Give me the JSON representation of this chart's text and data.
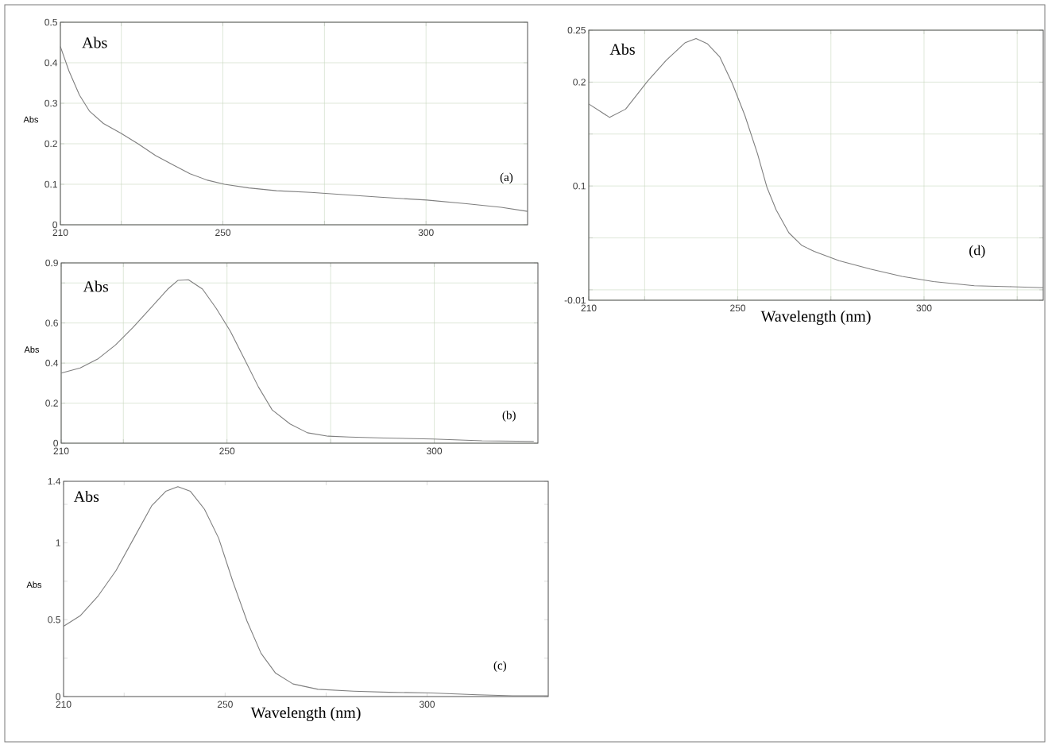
{
  "chart_data": [
    {
      "type": "line",
      "ylabel": "Abs",
      "annotations": [
        "Abs",
        "(a)"
      ],
      "xlim": [
        210,
        325
      ],
      "ylim": [
        0,
        0.5
      ],
      "grid": true,
      "xticks": [
        210,
        {
          "value": 225,
          "label": null
        },
        250,
        {
          "value": 275,
          "label": null
        },
        300
      ],
      "yticks": [
        0,
        0.1,
        0.2,
        0.3,
        0.4,
        0.5
      ],
      "series": [
        {
          "color": "#7f7f7f",
          "x": [
            210,
            212.1,
            214.7,
            217.2,
            220.6,
            224.9,
            229.1,
            233.4,
            237.7,
            241.9,
            246.2,
            250.4,
            256.4,
            263.2,
            271.7,
            280.2,
            288.7,
            300.2,
            310,
            318.5,
            325
          ],
          "values": [
            0.44,
            0.38,
            0.32,
            0.28,
            0.25,
            0.226,
            0.2,
            0.171,
            0.148,
            0.126,
            0.11,
            0.1,
            0.091,
            0.084,
            0.08,
            0.074,
            0.068,
            0.061,
            0.052,
            0.043,
            0.033
          ]
        }
      ]
    },
    {
      "type": "line",
      "ylabel": "Abs",
      "annotations": [
        "Abs",
        "(b)"
      ],
      "xlim": [
        210,
        325
      ],
      "ylim": [
        0,
        0.9
      ],
      "grid": true,
      "xticks": [
        210,
        {
          "value": 225,
          "label": null
        },
        250,
        {
          "value": 275,
          "label": null
        },
        300
      ],
      "yticks": [
        0,
        0.2,
        0.4,
        0.6,
        {
          "value": 0.8,
          "label": null
        },
        0.9
      ],
      "series": [
        {
          "color": "#7f7f7f",
          "x": [
            210,
            214.6,
            218.8,
            223.1,
            227.3,
            231.5,
            235.7,
            238.2,
            240.7,
            244.1,
            247.4,
            250.8,
            254.2,
            257.6,
            260.9,
            265.2,
            269.4,
            274.4,
            279.5,
            287.9,
            299.7,
            311.5,
            324
          ],
          "values": [
            0.35,
            0.376,
            0.42,
            0.49,
            0.577,
            0.673,
            0.769,
            0.813,
            0.816,
            0.769,
            0.673,
            0.559,
            0.42,
            0.28,
            0.166,
            0.096,
            0.052,
            0.035,
            0.031,
            0.026,
            0.021,
            0.012,
            0.009
          ]
        }
      ]
    },
    {
      "type": "line",
      "ylabel": "Abs",
      "xlabel": "Wavelength (nm)",
      "annotations": [
        "Abs",
        "(c)"
      ],
      "xlim": [
        210,
        330
      ],
      "ylim": [
        0,
        1.4
      ],
      "xticks": [
        210,
        {
          "value": 225,
          "label": null
        },
        250,
        {
          "value": 275,
          "label": null
        },
        300
      ],
      "yticks": [
        0,
        {
          "value": 0.25,
          "label": null
        },
        0.5,
        {
          "value": 0.75,
          "label": null
        },
        1,
        {
          "value": 1.25,
          "label": null
        },
        1.4
      ],
      "series": [
        {
          "color": "#7f7f7f",
          "x": [
            210,
            214.2,
            218.6,
            223,
            227.4,
            231.8,
            235.3,
            238.3,
            241.4,
            244.9,
            248.4,
            251.9,
            255.4,
            258.9,
            262.5,
            266.8,
            273,
            281.8,
            290.5,
            301,
            312.5,
            321.2,
            330
          ],
          "values": [
            0.457,
            0.527,
            0.656,
            0.82,
            1.03,
            1.24,
            1.335,
            1.365,
            1.335,
            1.218,
            1.03,
            0.749,
            0.492,
            0.281,
            0.152,
            0.082,
            0.047,
            0.035,
            0.028,
            0.023,
            0.012,
            0.005,
            0.005
          ]
        }
      ]
    },
    {
      "type": "line",
      "xlabel": "Wavelength (nm)",
      "annotations": [
        "Abs",
        "(d)"
      ],
      "xlim": [
        210,
        332
      ],
      "ylim": [
        -0.01,
        0.25
      ],
      "grid": true,
      "xticks": [
        210,
        {
          "value": 225,
          "label": null
        },
        250,
        {
          "value": 275,
          "label": null
        },
        300,
        {
          "value": 325,
          "label": null
        }
      ],
      "yticks": [
        -0.01,
        {
          "value": 0,
          "label": null
        },
        {
          "value": 0.05,
          "label": null
        },
        0.1,
        {
          "value": 0.15,
          "label": null
        },
        0.2,
        0.25
      ],
      "series": [
        {
          "color": "#7f7f7f",
          "x": [
            210,
            215.6,
            219.9,
            225.8,
            230.8,
            235.9,
            238.8,
            241.8,
            245.2,
            248.5,
            251.9,
            255.3,
            257.8,
            260.3,
            263.7,
            267.1,
            270.5,
            277.2,
            285.6,
            294.1,
            302.5,
            313.5,
            323.6,
            332
          ],
          "values": [
            0.179,
            0.166,
            0.174,
            0.201,
            0.221,
            0.238,
            0.242,
            0.237,
            0.224,
            0.199,
            0.168,
            0.131,
            0.099,
            0.077,
            0.055,
            0.043,
            0.037,
            0.028,
            0.02,
            0.013,
            0.008,
            0.004,
            0.003,
            0.002
          ]
        }
      ]
    }
  ]
}
